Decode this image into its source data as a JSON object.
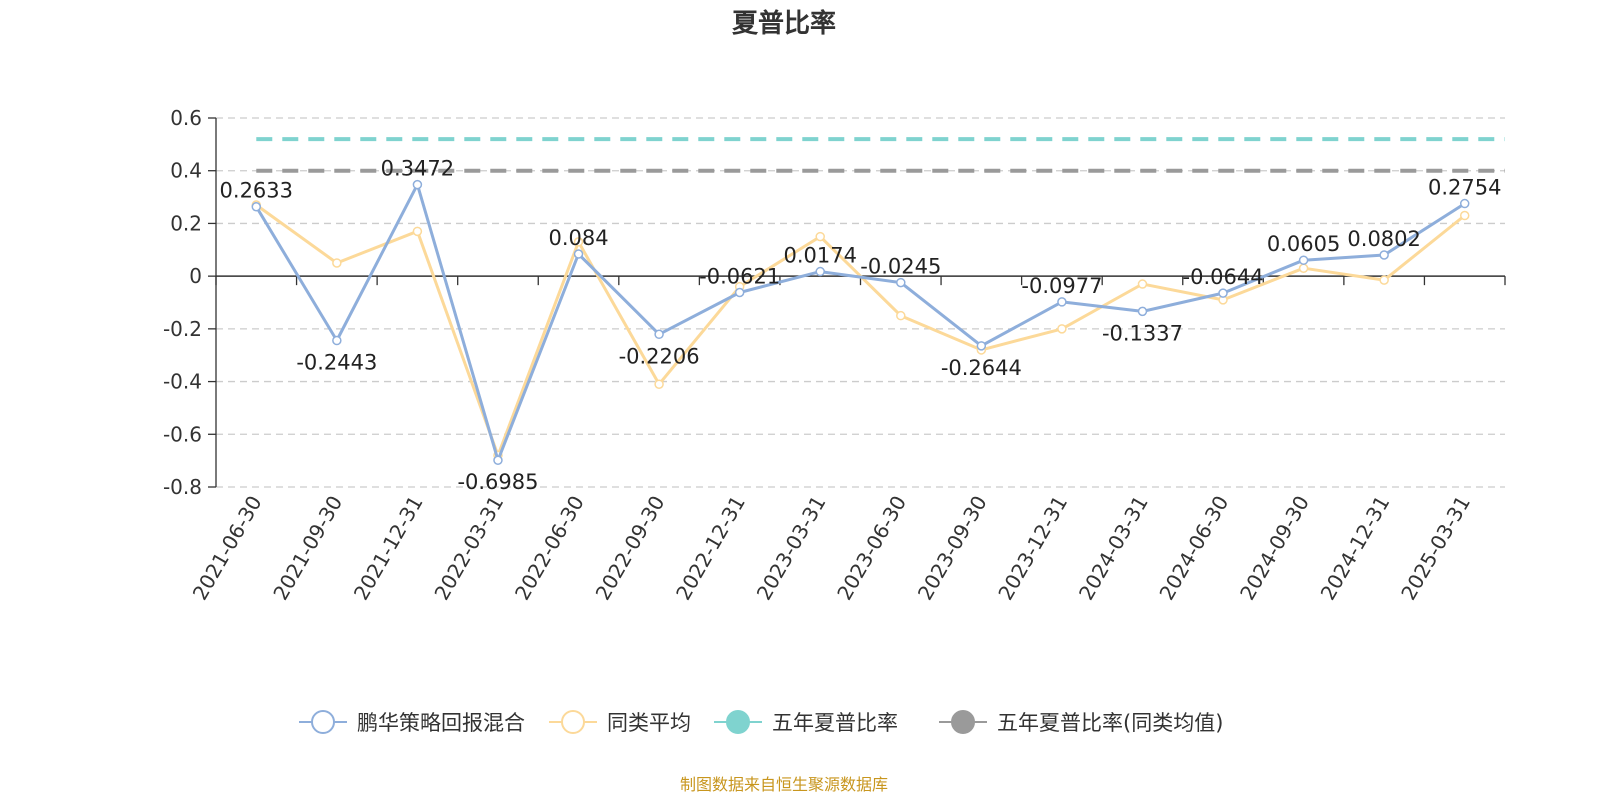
{
  "chart_data": {
    "type": "line",
    "title": "夏普比率",
    "categories": [
      "2021-06-30",
      "2021-09-30",
      "2021-12-31",
      "2022-03-31",
      "2022-06-30",
      "2022-09-30",
      "2022-12-31",
      "2023-03-31",
      "2023-06-30",
      "2023-09-30",
      "2023-12-31",
      "2024-03-31",
      "2024-06-30",
      "2024-09-30",
      "2024-12-31",
      "2025-03-31"
    ],
    "ylim": [
      -0.8,
      0.6
    ],
    "yticks": [
      0.6,
      0.4,
      0.2,
      0,
      -0.2,
      -0.4,
      -0.6,
      -0.8
    ],
    "ytick_labels": [
      "0.6",
      "0.4",
      "0.2",
      "0",
      "-0.2",
      "-0.4",
      "-0.6",
      "-0.8"
    ],
    "grid": true,
    "legend_position": "bottom-center",
    "series": [
      {
        "name": "鹏华策略回报混合",
        "color": "#8eaedb",
        "values": [
          0.2633,
          -0.2443,
          0.3472,
          -0.6985,
          0.084,
          -0.2206,
          -0.0621,
          0.0174,
          -0.0245,
          -0.2644,
          -0.0977,
          -0.1337,
          -0.0644,
          0.0605,
          0.0802,
          0.2754
        ],
        "labels": [
          "0.2633",
          "-0.2443",
          "0.3472",
          "-0.6985",
          "0.084",
          "-0.2206",
          "-0.0621",
          "0.0174",
          "-0.0245",
          "-0.2644",
          "-0.0977",
          "-0.1337",
          "-0.0644",
          "0.0605",
          "0.0802",
          "0.2754"
        ]
      },
      {
        "name": "同类平均",
        "color": "#fcd999",
        "values": [
          0.27,
          0.05,
          0.17,
          -0.68,
          0.13,
          -0.41,
          -0.04,
          0.15,
          -0.15,
          -0.28,
          -0.2,
          -0.03,
          -0.09,
          0.03,
          -0.015,
          0.23
        ]
      },
      {
        "name": "五年夏普比率",
        "color": "#7fd3cf",
        "style": "dashed",
        "value": 0.52
      },
      {
        "name": "五年夏普比率(同类均值)",
        "color": "#9a9a9a",
        "style": "dashed",
        "value": 0.4
      }
    ],
    "source": "制图数据来自恒生聚源数据库"
  }
}
